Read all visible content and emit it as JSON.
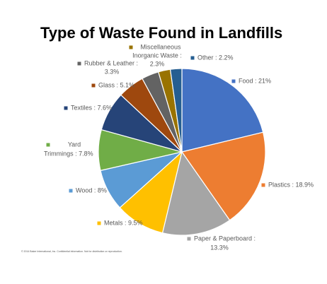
{
  "chart_data": {
    "type": "pie",
    "title": "Type of Waste Found in Landfills",
    "values": [
      21,
      18.9,
      13.3,
      9.5,
      8,
      7.8,
      7.6,
      5.1,
      3.3,
      2.3,
      2.2
    ],
    "value_labels": [
      [
        "Food : 21%"
      ],
      [
        "Plastics : 18.9%"
      ],
      [
        "Paper & Paperboard :",
        "13.3%"
      ],
      [
        "Metals : 9.5%"
      ],
      [
        "Wood : 8%"
      ],
      [
        "Yard",
        "Trimmings : 7.8%"
      ],
      [
        "Textiles : 7.6%"
      ],
      [
        "Glass : 5.1%"
      ],
      [
        "Rubber & Leather :",
        "3.3%"
      ],
      [
        "Miscellaneous",
        "Inorganic Waste :",
        "2.3%"
      ],
      [
        "Other : 2.2%"
      ]
    ],
    "colors": [
      "#4472c4",
      "#ed7d31",
      "#a5a5a5",
      "#ffc000",
      "#5b9bd5",
      "#70ad47",
      "#264478",
      "#9e480e",
      "#636363",
      "#997300",
      "#255e91"
    ],
    "footnote": "© 2014 Baker International, Inc. Confidential information. Not for distribution or reproduction."
  }
}
